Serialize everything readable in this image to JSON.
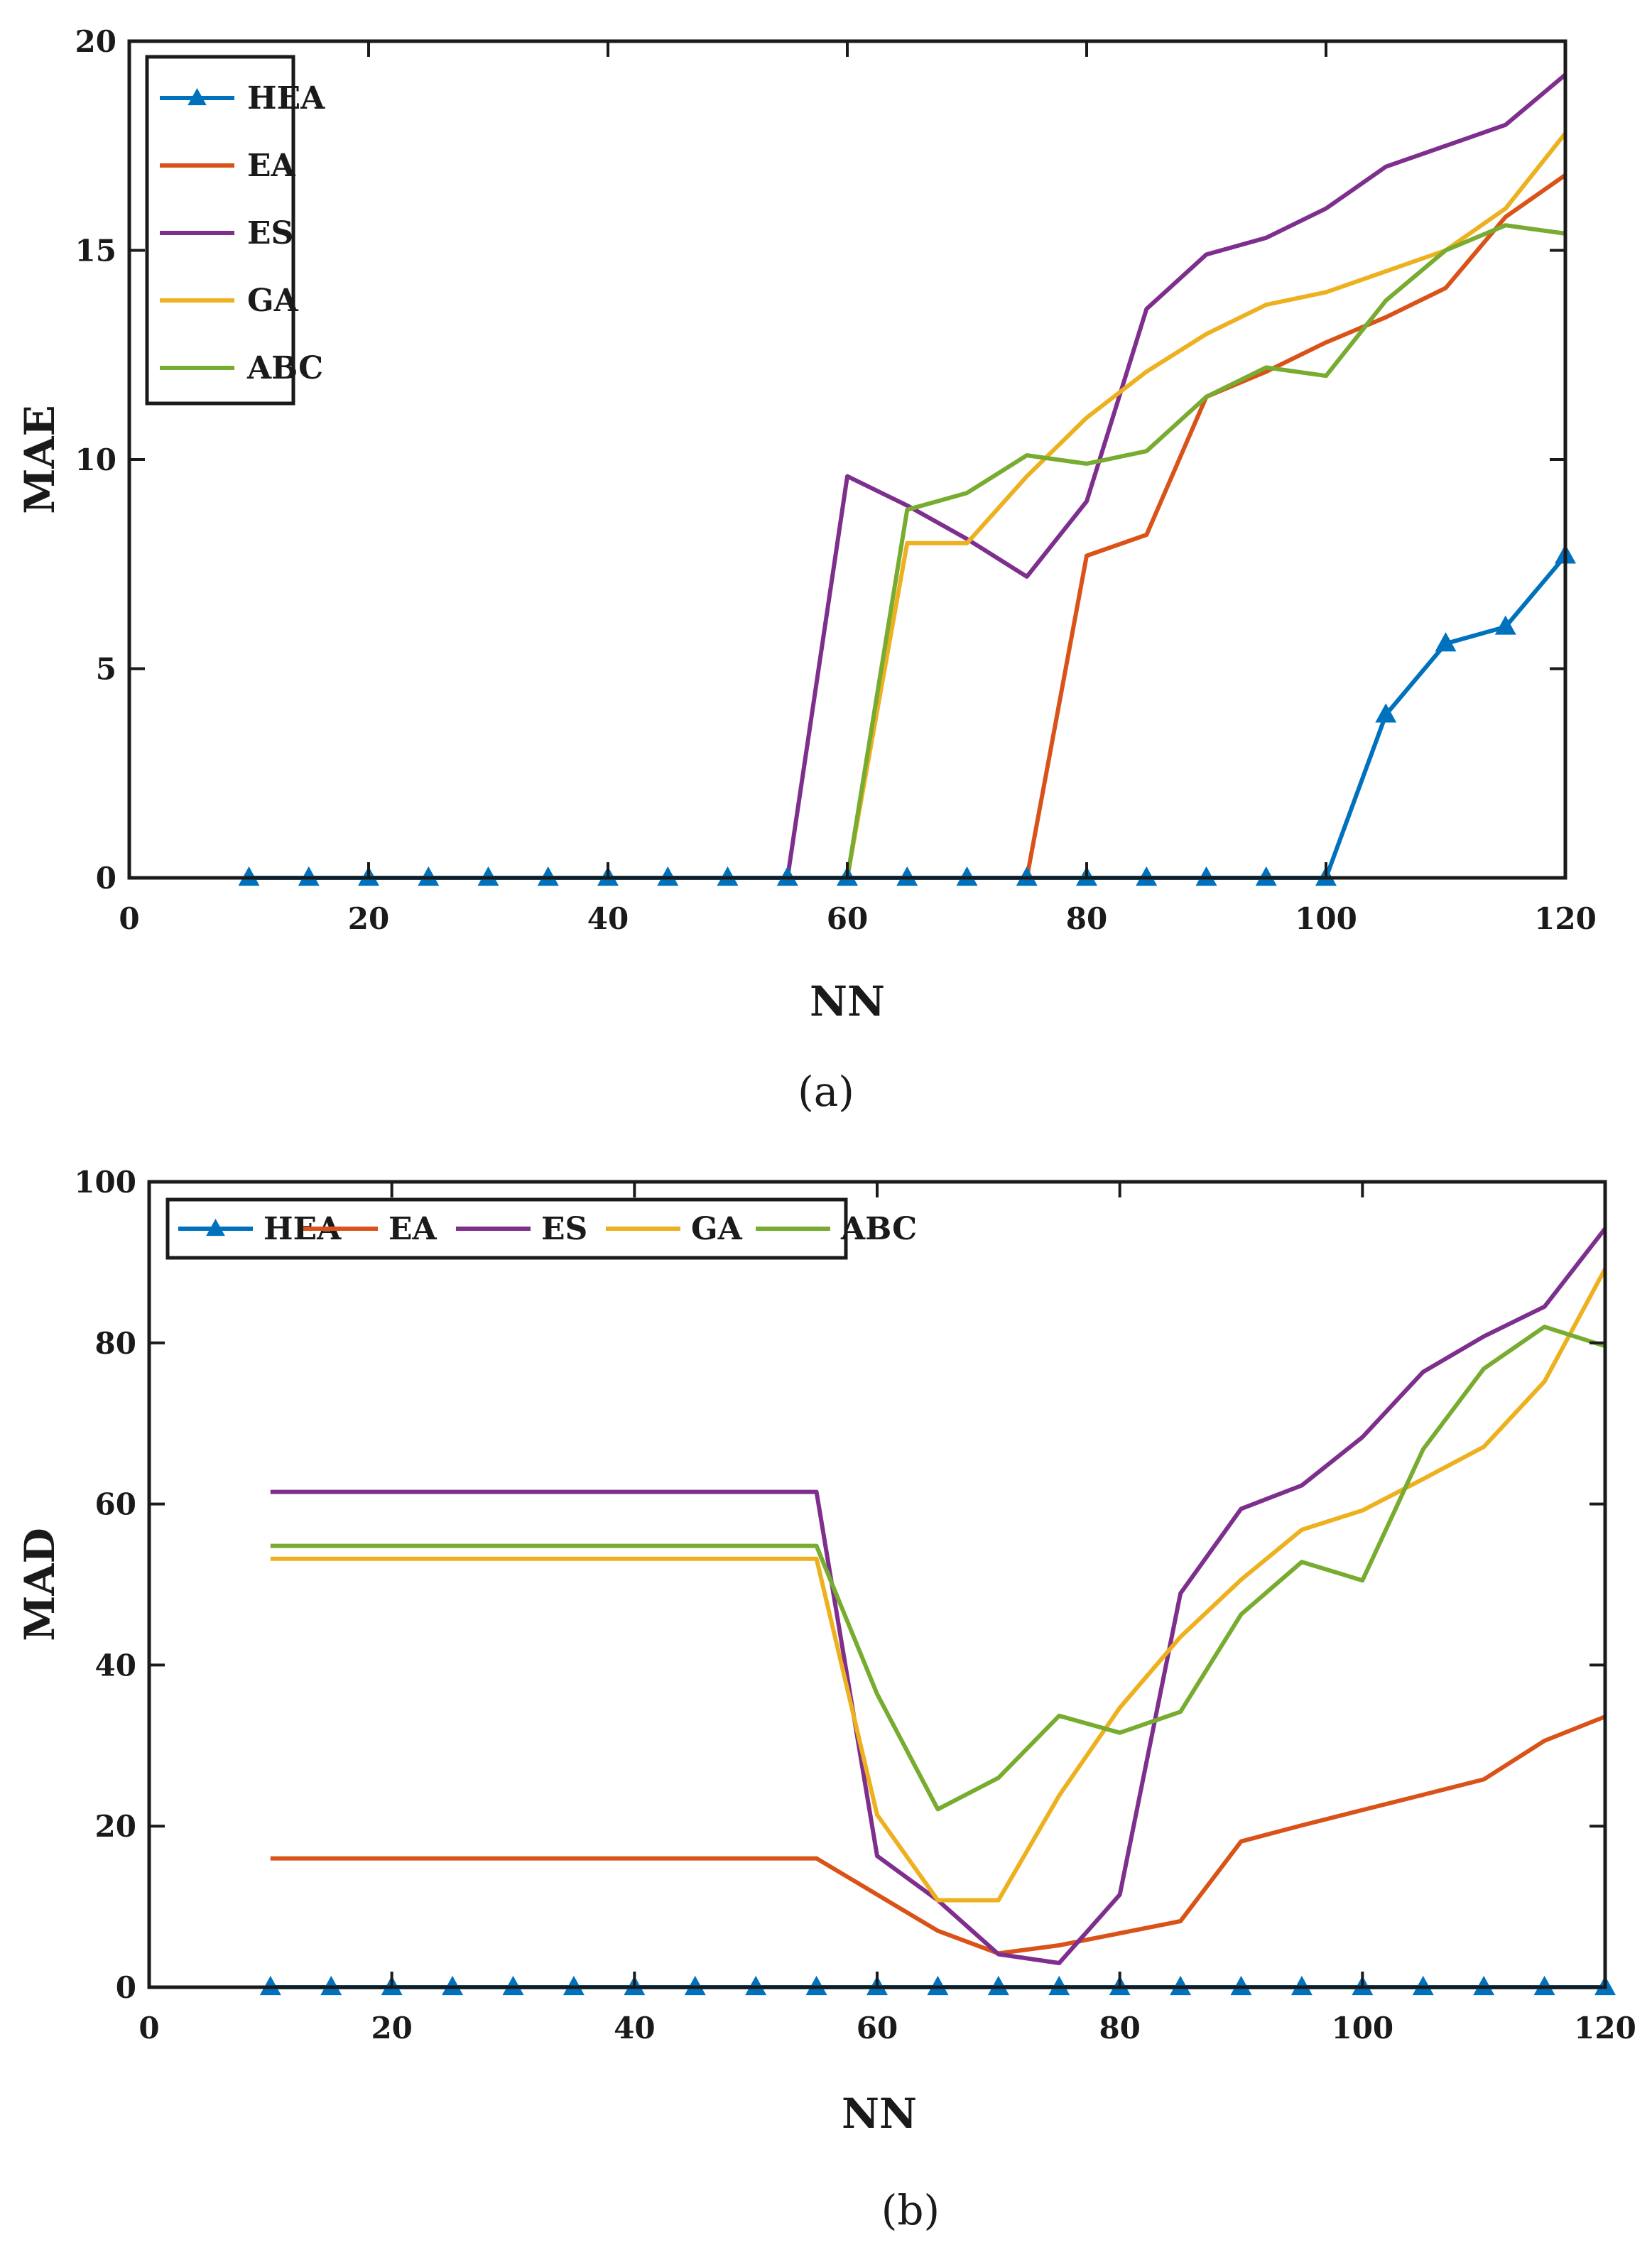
{
  "figure": {
    "panels": [
      "a",
      "b"
    ]
  },
  "chart_data": [
    {
      "type": "line",
      "panel": "a",
      "caption": "(a)",
      "title": "",
      "xlabel": "NN",
      "ylabel": "MAE",
      "xlim": [
        0,
        120
      ],
      "ylim": [
        0,
        20
      ],
      "xticks": [
        0,
        20,
        40,
        60,
        80,
        100,
        120
      ],
      "yticks": [
        0,
        5,
        10,
        15,
        20
      ],
      "grid": false,
      "legend": {
        "placement": "top-left",
        "orientation": "vertical"
      },
      "x": [
        10,
        15,
        20,
        25,
        30,
        35,
        40,
        45,
        50,
        55,
        60,
        65,
        70,
        75,
        80,
        85,
        90,
        95,
        100,
        105,
        110,
        115,
        120
      ],
      "series": [
        {
          "name": "HEA",
          "color": "#0072BD",
          "marker": "triangle",
          "values": [
            0,
            0,
            0,
            0,
            0,
            0,
            0,
            0,
            0,
            0,
            0,
            0,
            0,
            0,
            0,
            0,
            0,
            0,
            0,
            3.9,
            5.6,
            6.0,
            7.7
          ]
        },
        {
          "name": "EA",
          "color": "#D95319",
          "marker": "none",
          "values": [
            0,
            0,
            0,
            0,
            0,
            0,
            0,
            0,
            0,
            0,
            0,
            0,
            0,
            0,
            7.7,
            8.2,
            11.5,
            12.1,
            12.8,
            13.4,
            14.1,
            15.8,
            16.8
          ]
        },
        {
          "name": "ES",
          "color": "#7E2F8E",
          "marker": "none",
          "values": [
            0,
            0,
            0,
            0,
            0,
            0,
            0,
            0,
            0,
            0,
            9.6,
            8.9,
            8.1,
            7.2,
            9.0,
            13.6,
            14.9,
            15.3,
            16.0,
            17.0,
            17.5,
            18.0,
            19.2
          ]
        },
        {
          "name": "GA",
          "color": "#EDB120",
          "marker": "none",
          "values": [
            0,
            0,
            0,
            0,
            0,
            0,
            0,
            0,
            0,
            0,
            0,
            8.0,
            8.0,
            9.6,
            11.0,
            12.1,
            13.0,
            13.7,
            14.0,
            14.5,
            15.0,
            16.0,
            17.8
          ]
        },
        {
          "name": "ABC",
          "color": "#77AC30",
          "marker": "none",
          "values": [
            0,
            0,
            0,
            0,
            0,
            0,
            0,
            0,
            0,
            0,
            0,
            8.8,
            9.2,
            10.1,
            9.9,
            10.2,
            11.5,
            12.2,
            12.0,
            13.8,
            15.0,
            15.6,
            15.4
          ]
        }
      ]
    },
    {
      "type": "line",
      "panel": "b",
      "caption": "(b)",
      "title": "",
      "xlabel": "NN",
      "ylabel": "MAD",
      "xlim": [
        0,
        120
      ],
      "ylim": [
        0,
        100
      ],
      "xticks": [
        0,
        20,
        40,
        60,
        80,
        100,
        120
      ],
      "yticks": [
        0,
        20,
        40,
        60,
        80,
        100
      ],
      "grid": false,
      "legend": {
        "placement": "top-left",
        "orientation": "horizontal"
      },
      "x": [
        10,
        15,
        20,
        25,
        30,
        35,
        40,
        45,
        50,
        55,
        60,
        65,
        70,
        75,
        80,
        85,
        90,
        95,
        100,
        105,
        110,
        115,
        120
      ],
      "series": [
        {
          "name": "HEA",
          "color": "#0072BD",
          "marker": "triangle",
          "values": [
            0,
            0,
            0,
            0,
            0,
            0,
            0,
            0,
            0,
            0,
            0,
            0,
            0,
            0,
            0,
            0,
            0,
            0,
            0,
            0,
            0,
            0,
            0
          ]
        },
        {
          "name": "EA",
          "color": "#D95319",
          "marker": "none",
          "values": [
            16,
            16,
            16,
            16,
            16,
            16,
            16,
            16,
            16,
            16,
            11.5,
            7,
            4.2,
            5.2,
            6.7,
            8.2,
            18.1,
            20.1,
            22,
            23.9,
            25.8,
            30.6,
            33.6
          ]
        },
        {
          "name": "ES",
          "color": "#7E2F8E",
          "marker": "none",
          "values": [
            61.5,
            61.5,
            61.5,
            61.5,
            61.5,
            61.5,
            61.5,
            61.5,
            61.5,
            61.5,
            16.3,
            10.8,
            4.1,
            3.0,
            11.5,
            48.9,
            59.4,
            62.3,
            68.3,
            76.4,
            80.8,
            84.5,
            94.2
          ]
        },
        {
          "name": "GA",
          "color": "#EDB120",
          "marker": "none",
          "values": [
            53.2,
            53.2,
            53.2,
            53.2,
            53.2,
            53.2,
            53.2,
            53.2,
            53.2,
            53.2,
            21.4,
            10.8,
            10.8,
            23.8,
            34.7,
            43.5,
            50.6,
            56.8,
            59.2,
            63.1,
            67.1,
            75.2,
            89.2
          ]
        },
        {
          "name": "ABC",
          "color": "#77AC30",
          "marker": "none",
          "values": [
            54.8,
            54.8,
            54.8,
            54.8,
            54.8,
            54.8,
            54.8,
            54.8,
            54.8,
            54.8,
            36.4,
            22.1,
            26.0,
            33.7,
            31.6,
            34.2,
            46.3,
            52.8,
            50.5,
            66.8,
            76.8,
            82.0,
            79.6
          ]
        }
      ]
    }
  ]
}
